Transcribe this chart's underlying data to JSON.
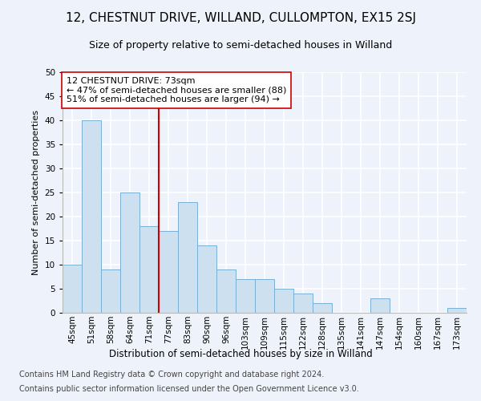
{
  "title": "12, CHESTNUT DRIVE, WILLAND, CULLOMPTON, EX15 2SJ",
  "subtitle": "Size of property relative to semi-detached houses in Willand",
  "xlabel": "Distribution of semi-detached houses by size in Willand",
  "ylabel": "Number of semi-detached properties",
  "categories": [
    "45sqm",
    "51sqm",
    "58sqm",
    "64sqm",
    "71sqm",
    "77sqm",
    "83sqm",
    "90sqm",
    "96sqm",
    "103sqm",
    "109sqm",
    "115sqm",
    "122sqm",
    "128sqm",
    "135sqm",
    "141sqm",
    "147sqm",
    "154sqm",
    "160sqm",
    "167sqm",
    "173sqm"
  ],
  "values": [
    10,
    40,
    9,
    25,
    18,
    17,
    23,
    14,
    9,
    7,
    7,
    5,
    4,
    2,
    0,
    0,
    3,
    0,
    0,
    0,
    1
  ],
  "bar_color": "#cce0f0",
  "bar_edge_color": "#7aafd4",
  "vline_x": 4.5,
  "vline_color": "#cc0000",
  "annotation_text": "12 CHESTNUT DRIVE: 73sqm\n← 47% of semi-detached houses are smaller (88)\n51% of semi-detached houses are larger (94) →",
  "annotation_box_color": "#ffffff",
  "annotation_box_edge": "#cc0000",
  "footer1": "Contains HM Land Registry data © Crown copyright and database right 2024.",
  "footer2": "Contains public sector information licensed under the Open Government Licence v3.0.",
  "ylim": [
    0,
    50
  ],
  "yticks": [
    0,
    5,
    10,
    15,
    20,
    25,
    30,
    35,
    40,
    45,
    50
  ],
  "background_color": "#eef2fa",
  "grid_color": "#ffffff",
  "title_fontsize": 11,
  "subtitle_fontsize": 9,
  "axis_label_fontsize": 8,
  "tick_fontsize": 7.5,
  "footer_fontsize": 7,
  "annotation_fontsize": 8
}
